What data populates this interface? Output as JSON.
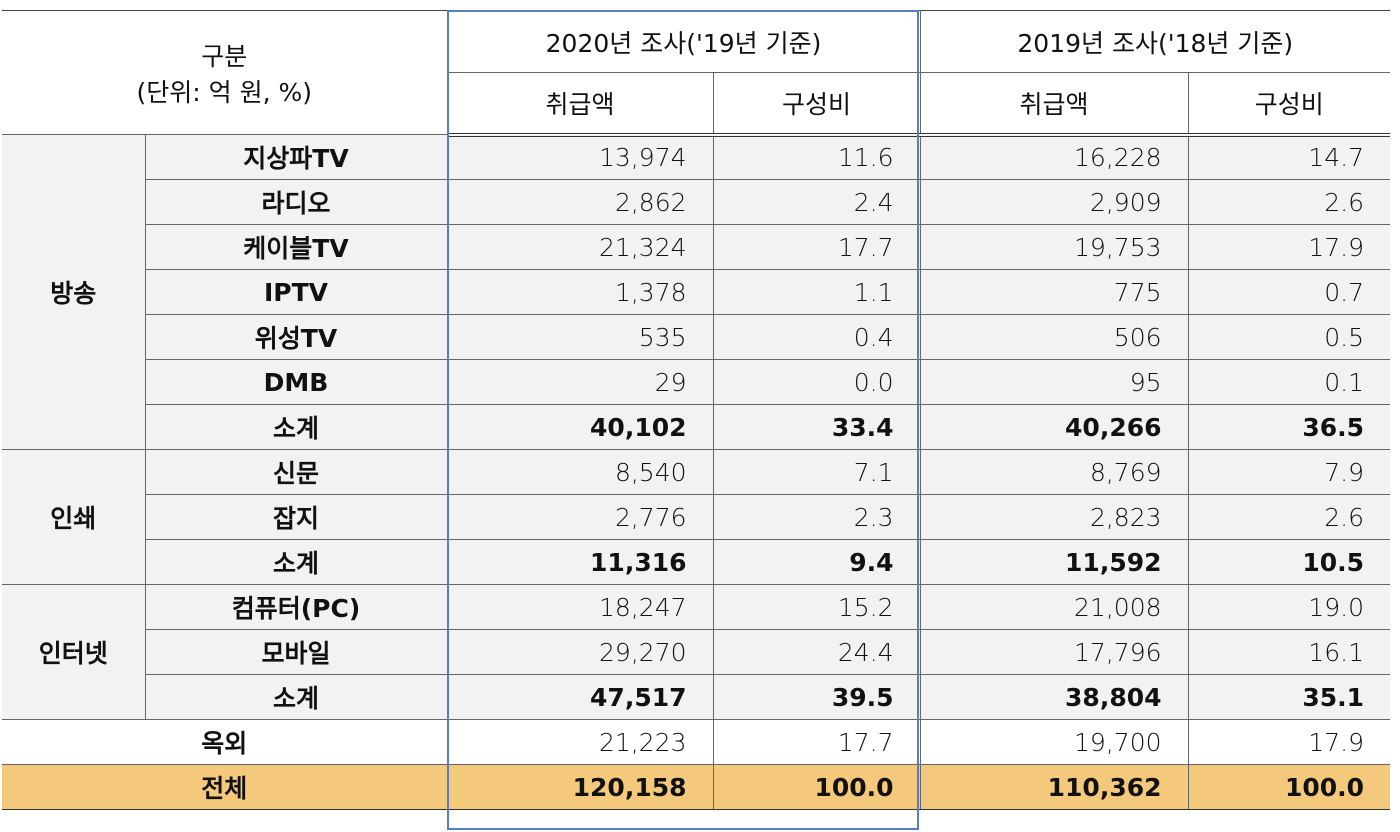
{
  "header": {
    "category": "구분",
    "unit": "(단위: 억 원, %)",
    "survey_2020": "2020년 조사('19년 기준)",
    "survey_2019": "2019년 조사('18년 기준)",
    "amount": "취급액",
    "ratio": "구성비"
  },
  "groups": [
    {
      "name": "방송",
      "rows": [
        {
          "item": "지상파TV",
          "a20": "13,974",
          "r20": "11.6",
          "a19": "16,228",
          "r19": "14.7"
        },
        {
          "item": "라디오",
          "a20": "2,862",
          "r20": "2.4",
          "a19": "2,909",
          "r19": "2.6"
        },
        {
          "item": "케이블TV",
          "a20": "21,324",
          "r20": "17.7",
          "a19": "19,753",
          "r19": "17.9"
        },
        {
          "item": "IPTV",
          "a20": "1,378",
          "r20": "1.1",
          "a19": "775",
          "r19": "0.7"
        },
        {
          "item": "위성TV",
          "a20": "535",
          "r20": "0.4",
          "a19": "506",
          "r19": "0.5"
        },
        {
          "item": "DMB",
          "a20": "29",
          "r20": "0.0",
          "a19": "95",
          "r19": "0.1"
        },
        {
          "item": "소계",
          "a20": "40,102",
          "r20": "33.4",
          "a19": "40,266",
          "r19": "36.5",
          "sub": true
        }
      ]
    },
    {
      "name": "인쇄",
      "rows": [
        {
          "item": "신문",
          "a20": "8,540",
          "r20": "7.1",
          "a19": "8,769",
          "r19": "7.9"
        },
        {
          "item": "잡지",
          "a20": "2,776",
          "r20": "2.3",
          "a19": "2,823",
          "r19": "2.6"
        },
        {
          "item": "소계",
          "a20": "11,316",
          "r20": "9.4",
          "a19": "11,592",
          "r19": "10.5",
          "sub": true
        }
      ]
    },
    {
      "name": "인터넷",
      "rows": [
        {
          "item": "컴퓨터(PC)",
          "a20": "18,247",
          "r20": "15.2",
          "a19": "21,008",
          "r19": "19.0"
        },
        {
          "item": "모바일",
          "a20": "29,270",
          "r20": "24.4",
          "a19": "17,796",
          "r19": "16.1"
        },
        {
          "item": "소계",
          "a20": "47,517",
          "r20": "39.5",
          "a19": "38,804",
          "r19": "35.1",
          "sub": true
        }
      ]
    }
  ],
  "outdoor": {
    "item": "옥외",
    "a20": "21,223",
    "r20": "17.7",
    "a19": "19,700",
    "r19": "17.9"
  },
  "total": {
    "item": "전체",
    "a20": "120,158",
    "r20": "100.0",
    "a19": "110,362",
    "r19": "100.0"
  },
  "colors": {
    "total_bg": "#f5c97b",
    "highlight_border": "#5a7dbf",
    "body_bg": "#f2f2f2"
  }
}
